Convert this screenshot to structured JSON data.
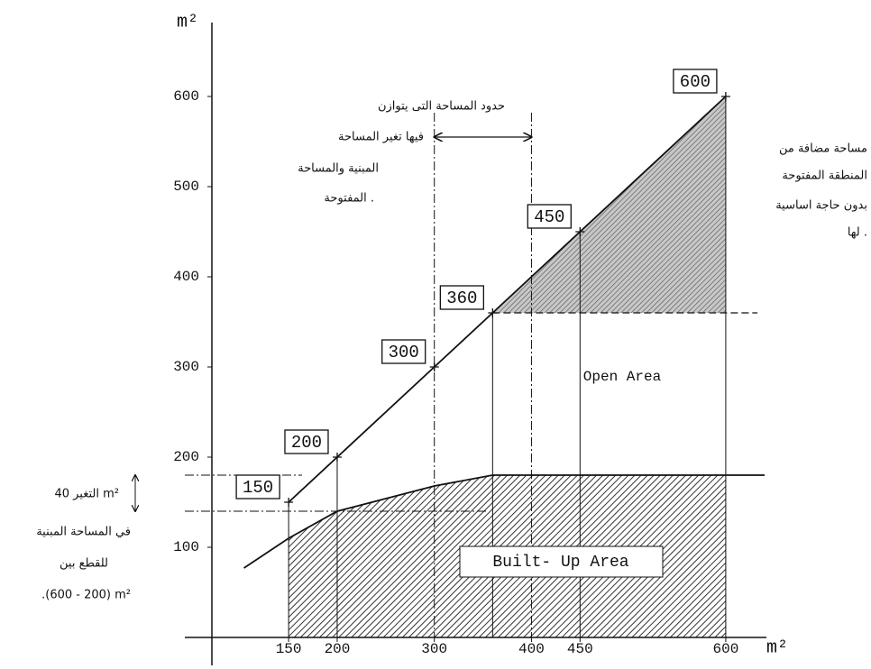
{
  "chart_data": {
    "type": "line",
    "x_label": "m²",
    "y_label": "m²",
    "xlim": [
      71,
      640
    ],
    "ylim": [
      0,
      680
    ],
    "xticks": [
      150,
      200,
      300,
      400,
      450,
      600
    ],
    "yticks": [
      100,
      200,
      300,
      400,
      500,
      600
    ],
    "series": [
      {
        "color": "#111111",
        "x": [
          150,
          200,
          300,
          360,
          450,
          600
        ],
        "values": [
          150,
          200,
          300,
          360,
          450,
          600
        ]
      },
      {
        "color": "#111111",
        "x": [
          104,
          150,
          200,
          300,
          360,
          600,
          640
        ],
        "values": [
          77,
          110,
          140,
          168,
          180,
          180,
          180
        ]
      }
    ],
    "annotations": {
      "open_area": "Open Area",
      "built_up_area": "Built- Up Area",
      "balance_range": {
        "x": [
          300,
          400
        ],
        "lines": [
          "حدود المساحة التى يتوازن",
          "فيها تغير المساحة",
          "المبنية والمساحة",
          "المفتوحة ."
        ]
      },
      "built_change": {
        "y": [
          140,
          180
        ],
        "lines": [
          "التغير 40 m²",
          "في المساحة المبنية",
          "للقطع بين",
          ".(600 - 200) m²"
        ]
      },
      "added_area_lines": [
        "مساحة مضافة من",
        "المنطقة المفتوحة",
        "بدون حاجة اساسية",
        "لها ."
      ]
    }
  }
}
